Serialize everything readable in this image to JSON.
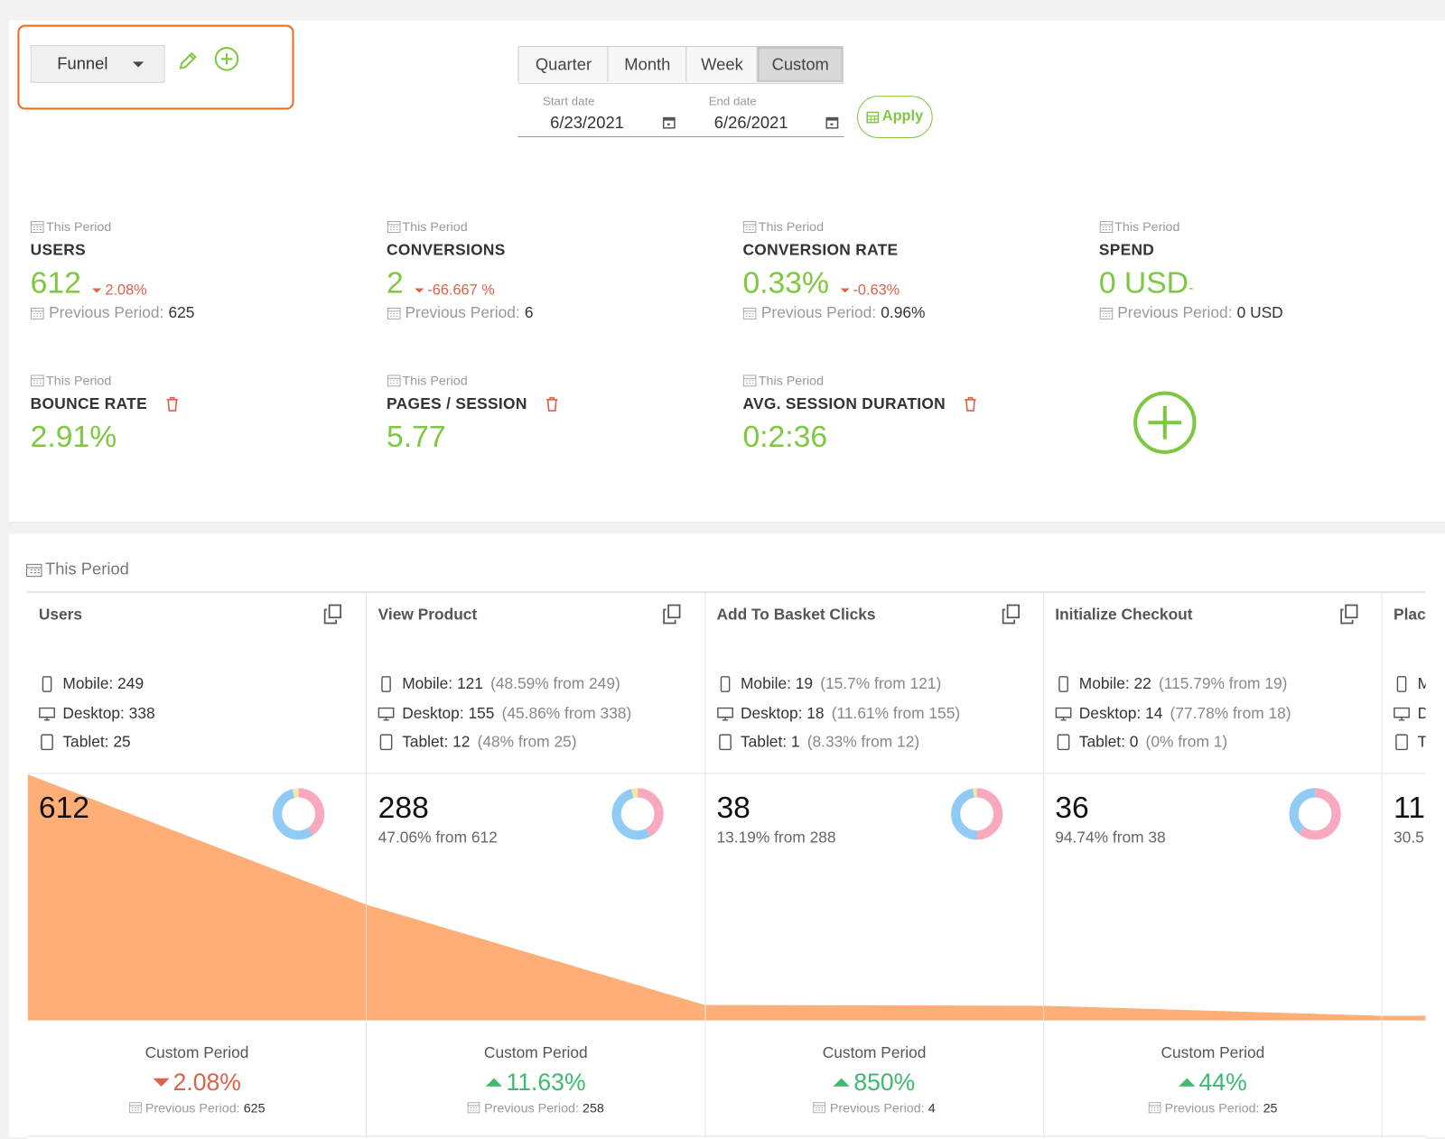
{
  "header": {
    "view": "Funnel",
    "periods": [
      "Quarter",
      "Month",
      "Week",
      "Custom"
    ],
    "active_period": 3,
    "start_date": {
      "label": "Start date",
      "value": "6/23/2021"
    },
    "end_date": {
      "label": "End date",
      "value": "6/26/2021"
    },
    "apply": "Apply"
  },
  "kpis": [
    {
      "period": "This Period",
      "title": "USERS",
      "value": "612",
      "change": "2.08%",
      "direction": "down",
      "previous_label": "Previous Period:",
      "previous_value": "625"
    },
    {
      "period": "This Period",
      "title": "CONVERSIONS",
      "value": "2",
      "change": "-66.667 %",
      "direction": "down",
      "previous_label": "Previous Period:",
      "previous_value": "6"
    },
    {
      "period": "This Period",
      "title": "CONVERSION RATE",
      "value": "0.33%",
      "change": "-0.63%",
      "direction": "down",
      "previous_label": "Previous Period:",
      "previous_value": "0.96%"
    },
    {
      "period": "This Period",
      "title": "SPEND",
      "value": "0 USD",
      "change": "-",
      "previous_label": "Previous Period:",
      "previous_value": "0 USD"
    },
    {
      "period": "This Period",
      "title": "BOUNCE RATE",
      "value": "2.91%",
      "deletable": true
    },
    {
      "period": "This Period",
      "title": "PAGES / SESSION",
      "value": "5.77",
      "deletable": true
    },
    {
      "period": "This Period",
      "title": "AVG. SESSION DURATION",
      "value": "0:2:36",
      "deletable": true
    }
  ],
  "funnel": {
    "period": "This Period",
    "area_color": "#ffae78",
    "device_colors": [
      "#f9a9be",
      "#90cbf5",
      "#f3e9a3"
    ],
    "steps": [
      {
        "title": "Users",
        "devices": [
          {
            "name": "Mobile:",
            "value": 249
          },
          {
            "name": "Desktop:",
            "value": 338
          },
          {
            "name": "Tablet:",
            "value": 25
          }
        ],
        "count": 612,
        "footer": {
          "label": "Custom Period",
          "change": "2.08%",
          "direction": "down",
          "previous_label": "Previous Period:",
          "previous_value": 625
        }
      },
      {
        "title": "View Product",
        "devices": [
          {
            "name": "Mobile:",
            "value": 121,
            "detail": "(48.59% from 249)"
          },
          {
            "name": "Desktop:",
            "value": 155,
            "detail": "(45.86% from 338)"
          },
          {
            "name": "Tablet:",
            "value": 12,
            "detail": "(48% from 25)"
          }
        ],
        "count": 288,
        "ratio": "47.06% from 612",
        "footer": {
          "label": "Custom Period",
          "change": "11.63%",
          "direction": "up",
          "previous_label": "Previous Period:",
          "previous_value": 258
        }
      },
      {
        "title": "Add To Basket Clicks",
        "devices": [
          {
            "name": "Mobile:",
            "value": 19,
            "detail": "(15.7% from 121)"
          },
          {
            "name": "Desktop:",
            "value": 18,
            "detail": "(11.61% from 155)"
          },
          {
            "name": "Tablet:",
            "value": 1,
            "detail": "(8.33% from 12)"
          }
        ],
        "count": 38,
        "ratio": "13.19% from 288",
        "footer": {
          "label": "Custom Period",
          "change": "850%",
          "direction": "up",
          "previous_label": "Previous Period:",
          "previous_value": 4
        }
      },
      {
        "title": "Initialize Checkout",
        "devices": [
          {
            "name": "Mobile:",
            "value": 22,
            "detail": "(115.79% from 19)"
          },
          {
            "name": "Desktop:",
            "value": 14,
            "detail": "(77.78% from 18)"
          },
          {
            "name": "Tablet:",
            "value": 0,
            "detail": "(0% from 1)"
          }
        ],
        "count": 36,
        "ratio": "94.74% from 38",
        "footer": {
          "label": "Custom Period",
          "change": "44%",
          "direction": "up",
          "previous_label": "Previous Period:",
          "previous_value": 25
        }
      },
      {
        "title": "Plac",
        "devices": [
          {
            "name": "M"
          },
          {
            "name": "D"
          },
          {
            "name": "T"
          }
        ],
        "count": 11,
        "ratio": "30.5"
      }
    ]
  }
}
